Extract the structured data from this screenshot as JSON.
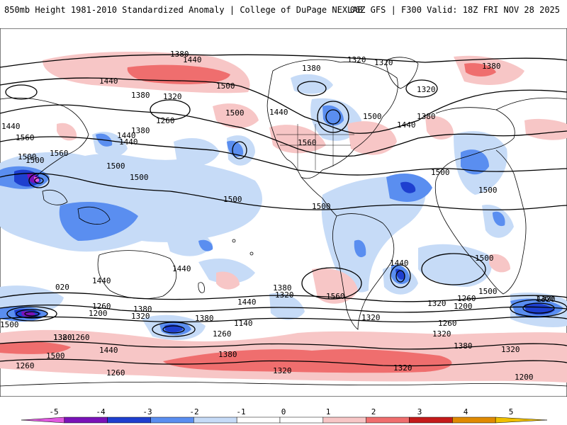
{
  "header": {
    "title_left": "850mb Height 1981-2010 Standardized Anomaly | College of DuPage NEXLAB",
    "title_right": "06Z GFS | F300 Valid: 18Z FRI NOV 28 2025"
  },
  "colors": {
    "land_outline": "#000000",
    "contour": "#000000",
    "neg_1": "#c6dbf7",
    "neg_2": "#5a8ef0",
    "neg_3": "#1e3fcf",
    "neg_4": "#7a12b8",
    "neg_5": "#e05ae0",
    "pos_1": "#f7c6c6",
    "pos_2": "#ef6e6e",
    "pos_3": "#c41a1a",
    "pos_4": "#e08a00",
    "pos_5": "#f0c000"
  },
  "colorbar": {
    "ticks": [
      "-5",
      "-4",
      "-3",
      "-2",
      "-1",
      "0",
      "1",
      "2",
      "3",
      "4",
      "5"
    ]
  },
  "contour_labels": [
    {
      "id": "c1",
      "text": "1380"
    },
    {
      "id": "c2",
      "text": "1440"
    },
    {
      "id": "c3",
      "text": "1440"
    },
    {
      "id": "c4",
      "text": "1500"
    },
    {
      "id": "c5",
      "text": "1380"
    },
    {
      "id": "c6",
      "text": "1320"
    },
    {
      "id": "c7",
      "text": "1260"
    },
    {
      "id": "c8",
      "text": "1380"
    },
    {
      "id": "c9",
      "text": "1440"
    },
    {
      "id": "c10",
      "text": "1500"
    },
    {
      "id": "c11",
      "text": "1440"
    },
    {
      "id": "c12",
      "text": "1320"
    },
    {
      "id": "c13",
      "text": "1320"
    },
    {
      "id": "c14",
      "text": "1380"
    },
    {
      "id": "c15",
      "text": "1500"
    },
    {
      "id": "c16",
      "text": "1440"
    },
    {
      "id": "c17",
      "text": "1560"
    },
    {
      "id": "c18",
      "text": "1500"
    },
    {
      "id": "c19",
      "text": "1440"
    },
    {
      "id": "c20",
      "text": "1560"
    },
    {
      "id": "c21",
      "text": "1500"
    },
    {
      "id": "c22",
      "text": "1560"
    },
    {
      "id": "c23",
      "text": "1500"
    },
    {
      "id": "c24",
      "text": "1500"
    },
    {
      "id": "c25",
      "text": "1500"
    },
    {
      "id": "c26",
      "text": "1440"
    },
    {
      "id": "c27",
      "text": "1320"
    },
    {
      "id": "c28",
      "text": "1380"
    },
    {
      "id": "c29",
      "text": "1500"
    },
    {
      "id": "c30",
      "text": "1500"
    },
    {
      "id": "c31",
      "text": "1500"
    },
    {
      "id": "c32",
      "text": "1500"
    },
    {
      "id": "c33",
      "text": "1500"
    },
    {
      "id": "c34",
      "text": "1440"
    },
    {
      "id": "c35",
      "text": "1380"
    },
    {
      "id": "c36",
      "text": "1320"
    },
    {
      "id": "c37",
      "text": "1440"
    },
    {
      "id": "c38",
      "text": "1560"
    },
    {
      "id": "c39",
      "text": "1440"
    },
    {
      "id": "c40",
      "text": "1380"
    },
    {
      "id": "c41",
      "text": "1320"
    },
    {
      "id": "c42",
      "text": "1260"
    },
    {
      "id": "c43",
      "text": "1200"
    },
    {
      "id": "c44",
      "text": "1380"
    },
    {
      "id": "c45",
      "text": "1320"
    },
    {
      "id": "c46",
      "text": "1260"
    },
    {
      "id": "c47",
      "text": "1200"
    },
    {
      "id": "c48",
      "text": "1260"
    },
    {
      "id": "c49",
      "text": "1140"
    },
    {
      "id": "c50",
      "text": "1260"
    },
    {
      "id": "c51",
      "text": "1320"
    },
    {
      "id": "c52",
      "text": "1260"
    },
    {
      "id": "c53",
      "text": "1380"
    },
    {
      "id": "c54",
      "text": "1440"
    },
    {
      "id": "c55",
      "text": "1260"
    },
    {
      "id": "c56",
      "text": "1320"
    },
    {
      "id": "c57",
      "text": "1320"
    },
    {
      "id": "c58",
      "text": "1320"
    },
    {
      "id": "c59",
      "text": "1260"
    },
    {
      "id": "c60",
      "text": "1380"
    },
    {
      "id": "c61",
      "text": "1320"
    },
    {
      "id": "c62",
      "text": "1200"
    },
    {
      "id": "c63",
      "text": "1320"
    },
    {
      "id": "c64",
      "text": "1380"
    },
    {
      "id": "c65",
      "text": "1500"
    },
    {
      "id": "c66",
      "text": "020"
    },
    {
      "id": "c67",
      "text": "1500"
    },
    {
      "id": "c68",
      "text": "1440"
    },
    {
      "id": "c69",
      "text": "1380"
    },
    {
      "id": "c70",
      "text": "1260"
    },
    {
      "id": "c71",
      "text": "1320"
    }
  ]
}
